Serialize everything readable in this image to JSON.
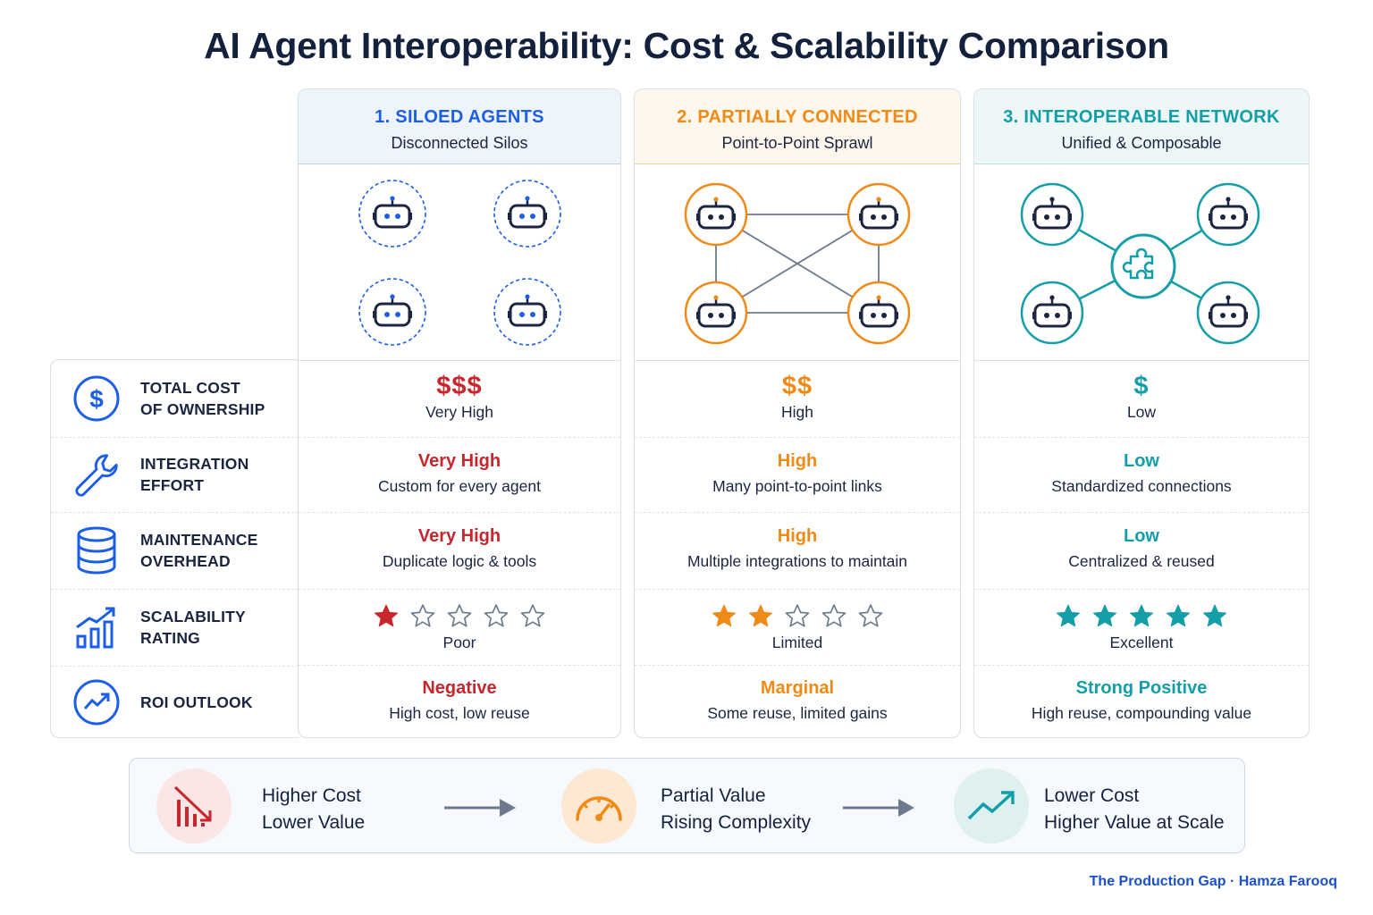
{
  "title": "AI Agent Interoperability: Cost & Scalability Comparison",
  "colors": {
    "blue": "#1d5ee8",
    "orange": "#f08a16",
    "teal": "#139ea8",
    "red": "#c8252d",
    "navy": "#1b2540"
  },
  "rows": [
    {
      "icon": "dollar-circle-icon",
      "label_line1": "TOTAL COST",
      "label_line2": "OF OWNERSHIP"
    },
    {
      "icon": "wrench-icon",
      "label_line1": "INTEGRATION",
      "label_line2": "EFFORT"
    },
    {
      "icon": "database-icon",
      "label_line1": "MAINTENANCE",
      "label_line2": "OVERHEAD"
    },
    {
      "icon": "bar-chart-rising-icon",
      "label_line1": "SCALABILITY",
      "label_line2": "RATING"
    },
    {
      "icon": "trend-up-circle-icon",
      "label_line1": "ROI OUTLOOK",
      "label_line2": ""
    }
  ],
  "columns": [
    {
      "heading": "1. SILOED AGENTS",
      "subheading": "Disconnected Silos",
      "cost_symbol": "$$$",
      "cost_label": "Very High",
      "integration_value": "Very High",
      "integration_desc": "Custom for every agent",
      "maintenance_value": "Very High",
      "maintenance_desc": "Duplicate logic & tools",
      "scalability_stars": 1,
      "scalability_label": "Poor",
      "roi_value": "Negative",
      "roi_desc": "High cost, low reuse"
    },
    {
      "heading": "2. PARTIALLY CONNECTED",
      "subheading": "Point-to-Point Sprawl",
      "cost_symbol": "$$",
      "cost_label": "High",
      "integration_value": "High",
      "integration_desc": "Many point-to-point links",
      "maintenance_value": "High",
      "maintenance_desc": "Multiple integrations to maintain",
      "scalability_stars": 2,
      "scalability_label": "Limited",
      "roi_value": "Marginal",
      "roi_desc": "Some reuse, limited gains"
    },
    {
      "heading": "3. INTEROPERABLE NETWORK",
      "subheading": "Unified & Composable",
      "cost_symbol": "$",
      "cost_label": "Low",
      "integration_value": "Low",
      "integration_desc": "Standardized connections",
      "maintenance_value": "Low",
      "maintenance_desc": "Centralized & reused",
      "scalability_stars": 5,
      "scalability_label": "Excellent",
      "roi_value": "Strong Positive",
      "roi_desc": "High reuse, compounding value"
    }
  ],
  "banner": [
    {
      "icon": "declining-bars-icon",
      "line1": "Higher Cost",
      "line2": "Lower Value"
    },
    {
      "icon": "gauge-icon",
      "line1": "Partial Value",
      "line2": "Rising Complexity"
    },
    {
      "icon": "trend-up-icon",
      "line1": "Lower Cost",
      "line2": "Higher Value at Scale"
    }
  ],
  "footer": "The Production Gap · Hamza Farooq"
}
